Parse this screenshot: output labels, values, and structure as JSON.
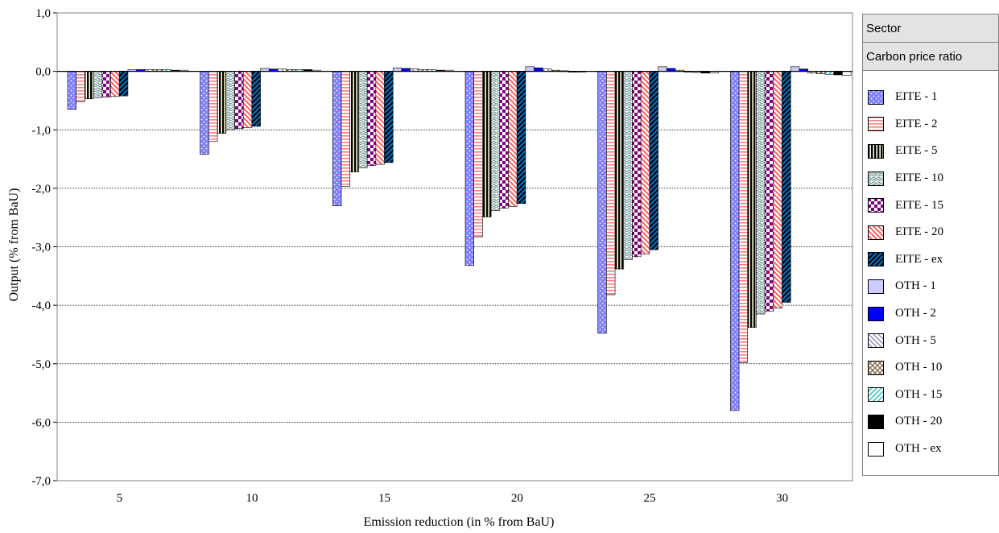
{
  "chart_data": {
    "type": "bar",
    "xlabel": "Emission reduction (in % from BaU)",
    "ylabel": "Output (% from BaU)",
    "ylim": [
      -7.0,
      1.0
    ],
    "y_ticks": [
      "1,0",
      "0,0",
      "-1,0",
      "-2,0",
      "-3,0",
      "-4,0",
      "-5,0",
      "-6,0",
      "-7,0"
    ],
    "y_tick_values": [
      1,
      0,
      -1,
      -2,
      -3,
      -4,
      -5,
      -6,
      -7
    ],
    "categories": [
      "5",
      "10",
      "15",
      "20",
      "25",
      "30"
    ],
    "grid": "horizontal",
    "legend": {
      "position": "right",
      "headers": [
        "Sector",
        "Carbon price ratio"
      ]
    },
    "series": [
      {
        "name": "EITE - 1",
        "color": "#8080ff",
        "pattern": "dots",
        "values": [
          -0.65,
          -1.42,
          -2.3,
          -3.32,
          -4.48,
          -5.8
        ]
      },
      {
        "name": "EITE - 2",
        "color": "#ff8080",
        "pattern": "hlines",
        "values": [
          -0.52,
          -1.2,
          -1.97,
          -2.83,
          -3.82,
          -4.98
        ]
      },
      {
        "name": "EITE - 5",
        "color": "#a0a070",
        "pattern": "vlines",
        "values": [
          -0.47,
          -1.06,
          -1.72,
          -2.49,
          -3.38,
          -4.38
        ]
      },
      {
        "name": "EITE - 10",
        "color": "#80a0a0",
        "pattern": "waves",
        "values": [
          -0.45,
          -1.0,
          -1.65,
          -2.38,
          -3.22,
          -4.15
        ]
      },
      {
        "name": "EITE - 15",
        "color": "#800080",
        "pattern": "checker",
        "values": [
          -0.44,
          -0.98,
          -1.61,
          -2.34,
          -3.17,
          -4.1
        ]
      },
      {
        "name": "EITE - 20",
        "color": "#ff6060",
        "pattern": "diag-down",
        "values": [
          -0.43,
          -0.96,
          -1.59,
          -2.31,
          -3.12,
          -4.05
        ]
      },
      {
        "name": "EITE - ex",
        "color": "#0070c0",
        "pattern": "diag-up-thick",
        "values": [
          -0.42,
          -0.94,
          -1.56,
          -2.26,
          -3.05,
          -3.95
        ]
      },
      {
        "name": "OTH - 1",
        "color": "#ccccff",
        "pattern": "solid",
        "values": [
          0.03,
          0.05,
          0.06,
          0.08,
          0.08,
          0.08
        ]
      },
      {
        "name": "OTH - 2",
        "color": "#0000ff",
        "pattern": "solid",
        "values": [
          0.03,
          0.04,
          0.05,
          0.06,
          0.05,
          0.04
        ]
      },
      {
        "name": "OTH - 5",
        "color": "#8080c0",
        "pattern": "diag-down-thin",
        "values": [
          0.03,
          0.04,
          0.04,
          0.04,
          0.02,
          -0.03
        ]
      },
      {
        "name": "OTH - 10",
        "color": "#806040",
        "pattern": "cross",
        "values": [
          0.03,
          0.03,
          0.03,
          0.02,
          -0.01,
          -0.04
        ]
      },
      {
        "name": "OTH - 15",
        "color": "#40c0c0",
        "pattern": "diag-up",
        "values": [
          0.03,
          0.03,
          0.03,
          0.01,
          -0.02,
          -0.05
        ]
      },
      {
        "name": "OTH - 20",
        "color": "#000000",
        "pattern": "solid",
        "values": [
          0.02,
          0.03,
          0.02,
          0.0,
          -0.03,
          -0.06
        ]
      },
      {
        "name": "OTH - ex",
        "color": "#ffffff",
        "pattern": "solid",
        "values": [
          0.02,
          0.02,
          0.02,
          -0.01,
          -0.03,
          -0.07
        ]
      }
    ]
  }
}
